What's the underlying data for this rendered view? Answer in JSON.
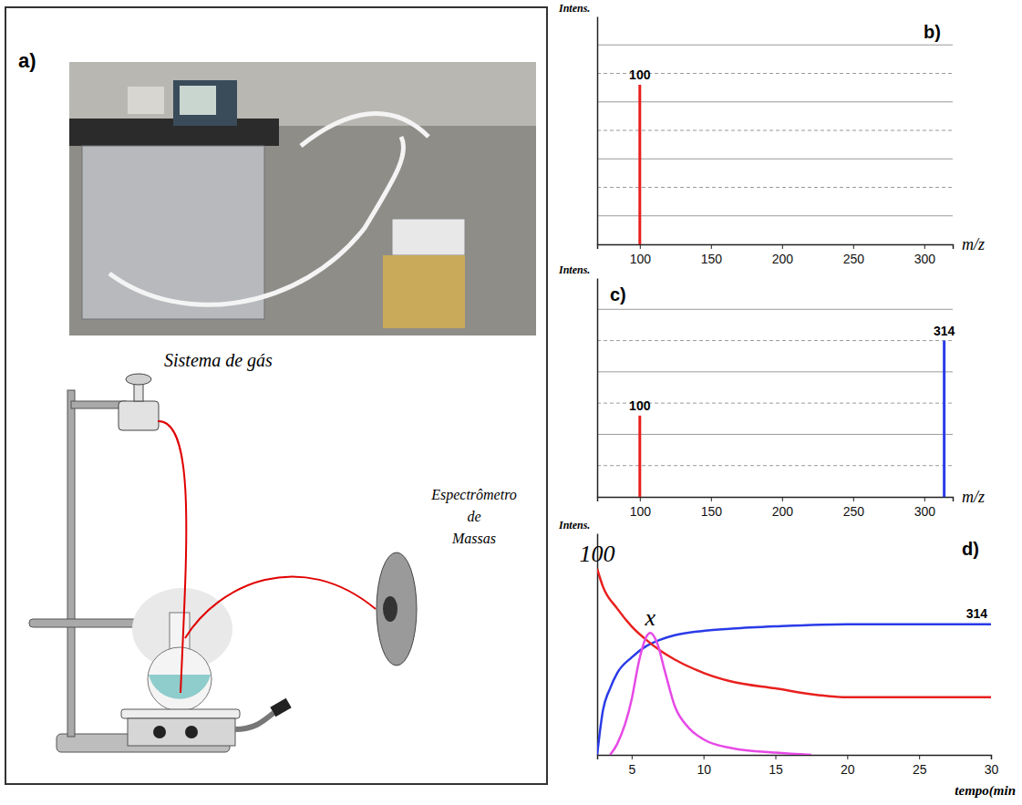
{
  "diagram": {
    "title": "a)",
    "labels": [
      "Sistema de gás",
      "Espectrômetro de Massas"
    ]
  },
  "chart_data": [
    {
      "type": "bar",
      "title": "b)",
      "ylabel": "Intens.",
      "xlabel": "m/z",
      "xlim": [
        70,
        320
      ],
      "xticks": [
        100,
        150,
        200,
        250,
        300
      ],
      "ylim": [
        0,
        8
      ],
      "yticks": [
        1,
        2,
        3,
        4,
        5,
        6,
        7
      ],
      "grid": true,
      "tick_labels": "x",
      "series": [
        {
          "name": "100",
          "color": "#e8201e",
          "x": [
            100
          ],
          "values": [
            5.6
          ]
        }
      ]
    },
    {
      "type": "bar",
      "title": "c)",
      "ylabel": "Intens.",
      "xlabel": "m/z",
      "xlim": [
        70,
        320
      ],
      "xticks": [
        100,
        150,
        200,
        250,
        300
      ],
      "ylim": [
        0,
        7
      ],
      "yticks": [
        1,
        2,
        3,
        4,
        5,
        6
      ],
      "grid": true,
      "tick_labels": "x",
      "series": [
        {
          "name": "100",
          "color": "#e8201e",
          "x": [
            100
          ],
          "values": [
            2.6
          ]
        },
        {
          "name": "314",
          "color": "#2a3be8",
          "x": [
            314
          ],
          "values": [
            5.0
          ]
        }
      ]
    },
    {
      "type": "line",
      "title": "d)",
      "ylabel": "Intens.",
      "xlabel": "tempo(min",
      "xlim": [
        2.6,
        30
      ],
      "xticks": [
        5,
        10,
        15,
        20,
        25,
        30
      ],
      "ylim": [
        0,
        10
      ],
      "yticks": [],
      "grid": false,
      "tick_labels": "x",
      "series": [
        {
          "name": "314",
          "color": "#2a3be8",
          "x": [
            2.6,
            3,
            3.5,
            4,
            5,
            6,
            7,
            8,
            10,
            12,
            15,
            20,
            25,
            30
          ],
          "values": [
            0,
            2.0,
            3.0,
            3.7,
            4.4,
            4.9,
            5.2,
            5.4,
            5.6,
            5.7,
            5.8,
            5.9,
            5.9,
            5.9
          ]
        },
        {
          "name": "100",
          "color": "#e8201e",
          "x": [
            2.6,
            3,
            4,
            5,
            6,
            7,
            8,
            10,
            12,
            15,
            18,
            20,
            25,
            30
          ],
          "values": [
            8.4,
            7.6,
            6.6,
            5.8,
            5.2,
            4.7,
            4.3,
            3.7,
            3.3,
            3.0,
            2.7,
            2.6,
            2.6,
            2.6
          ]
        },
        {
          "name": "x",
          "color": "#e64ae6",
          "x": [
            3.5,
            4,
            5,
            5.5,
            6,
            6.3,
            6.8,
            7.3,
            8,
            9,
            10,
            12,
            15,
            17.5
          ],
          "values": [
            0,
            0.5,
            2.5,
            4.2,
            5.3,
            5.5,
            5.0,
            3.8,
            2.2,
            1.2,
            0.7,
            0.3,
            0.1,
            0
          ]
        }
      ]
    }
  ]
}
